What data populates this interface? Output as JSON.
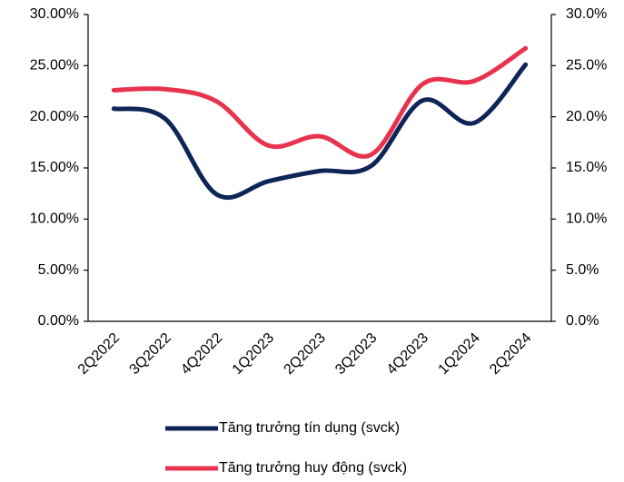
{
  "chart_data": {
    "type": "line",
    "categories": [
      "2Q2022",
      "3Q2022",
      "4Q2022",
      "1Q2023",
      "2Q2023",
      "3Q2023",
      "4Q2023",
      "1Q2024",
      "2Q2024"
    ],
    "series": [
      {
        "name": "Tăng trưởng tín dụng (svck)",
        "color": "#0e2557",
        "values": [
          20.8,
          19.8,
          12.4,
          13.7,
          14.7,
          15.2,
          21.6,
          19.4,
          25.1
        ]
      },
      {
        "name": "Tăng trưởng huy động (svck)",
        "color": "#e8334f",
        "values": [
          22.6,
          22.7,
          21.5,
          17.2,
          18.1,
          16.3,
          23.2,
          23.5,
          26.7
        ]
      }
    ],
    "ylim": [
      0,
      30
    ],
    "yticks": [
      {
        "value": 0,
        "label": "0.00%"
      },
      {
        "value": 5,
        "label": "5.00%"
      },
      {
        "value": 10,
        "label": "10.00%"
      },
      {
        "value": 15,
        "label": "15.00%"
      },
      {
        "value": 20,
        "label": "20.00%"
      },
      {
        "value": 25,
        "label": "25.00%"
      },
      {
        "value": 30,
        "label": "30.00%"
      }
    ],
    "y2lim": [
      0,
      30
    ],
    "y2ticks": [
      {
        "value": 0,
        "label": "0.0%"
      },
      {
        "value": 5,
        "label": "5.0%"
      },
      {
        "value": 10,
        "label": "10.0%"
      },
      {
        "value": 15,
        "label": "15.0%"
      },
      {
        "value": 20,
        "label": "20.0%"
      },
      {
        "value": 25,
        "label": "25.0%"
      },
      {
        "value": 30,
        "label": "30.0%"
      }
    ],
    "legend": "bottom"
  }
}
